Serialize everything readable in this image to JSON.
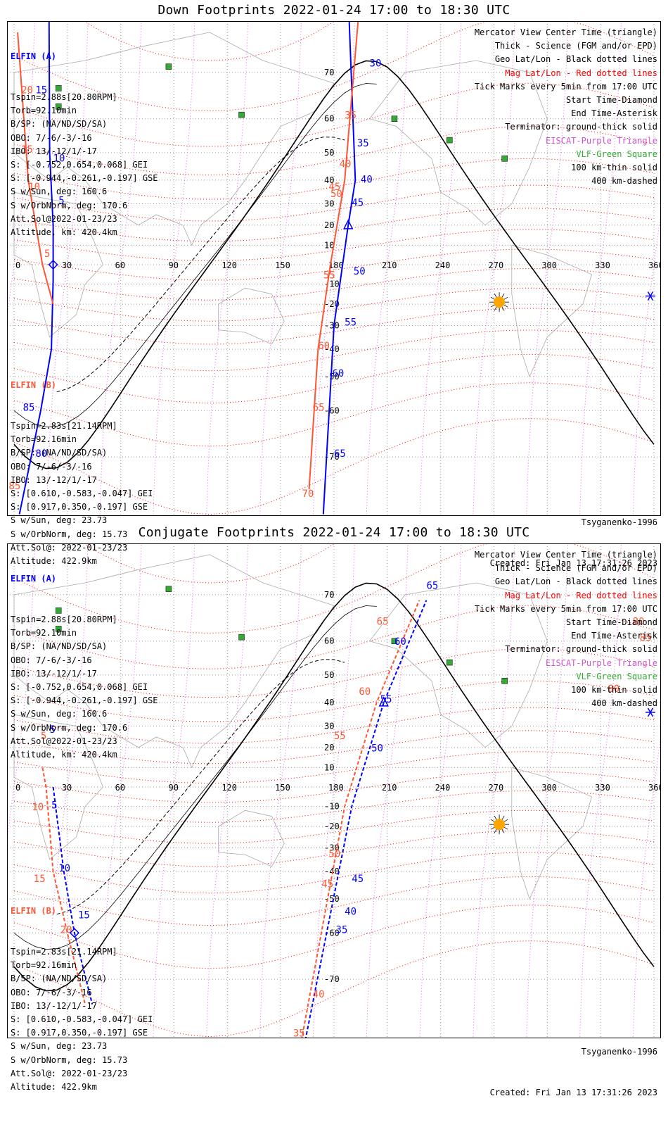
{
  "panels": [
    {
      "title": "Down Footprints 2022-01-24 17:00 to 18:30 UTC",
      "elfin_a": {
        "header": "ELFIN (A)",
        "lines": [
          "Tspin=2.88s[20.80RPM]",
          "Torb=92.10min",
          "B/SP: (NA/ND/SD/SA)",
          "OBO: 7/-6/-3/-16",
          "IBO: 13/-12/1/-17",
          "S: [-0.752,0.654,0.068] GEI",
          "S: [-0.944,-0.261,-0.197] GSE",
          "S w/Sun, deg: 160.6",
          "S w/OrbNorm, deg: 170.6",
          "Att.Sol@2022-01-23/23",
          "Altitude, km: 420.4km"
        ]
      },
      "elfin_b": {
        "header": "ELFIN (B)",
        "lines": [
          "Tspin=2.83s[21.14RPM]",
          "Torb=92.16min",
          "B/SP: (NA/ND/SD/SA)",
          "OBO: 7/-6/-3/-16",
          "IBO: 13/-12/1/-17",
          "S: [0.610,-0.583,-0.047] GEI",
          "S: [0.917,0.350,-0.197] GSE",
          "S w/Sun, deg: 23.73",
          "S w/OrbNorm, deg: 15.73",
          "Att.Sol@: 2022-01-23/23",
          "Altitude: 422.9km"
        ]
      },
      "model": "Tsyganenko-1996",
      "created": "Created: Fri Jan 13 17:31:26 2023"
    },
    {
      "title": "Conjugate Footprints 2022-01-24 17:00 to 18:30 UTC",
      "elfin_a": {
        "header": "ELFIN (A)",
        "lines": [
          "Tspin=2.88s[20.80RPM]",
          "Torb=92.10min",
          "B/SP: (NA/ND/SD/SA)",
          "OBO: 7/-6/-3/-16",
          "IBO: 13/-12/1/-17",
          "S: [-0.752,0.654,0.068] GEI",
          "S: [-0.944,-0.261,-0.197] GSE",
          "S w/Sun, deg: 160.6",
          "S w/OrbNorm, deg: 170.6",
          "Att.Sol@2022-01-23/23",
          "Altitude, km: 420.4km"
        ]
      },
      "elfin_b": {
        "header": "ELFIN (B)",
        "lines": [
          "Tspin=2.83s[21.14RPM]",
          "Torb=92.16min",
          "B/SP: (NA/ND/SD/SA)",
          "OBO: 7/-6/-3/-16",
          "IBO: 13/-12/1/-17",
          "S: [0.610,-0.583,-0.047] GEI",
          "S: [0.917,0.350,-0.197] GSE",
          "S w/Sun, deg: 23.73",
          "S w/OrbNorm, deg: 15.73",
          "Att.Sol@: 2022-01-23/23",
          "Altitude: 422.9km"
        ]
      },
      "model": "Tsyganenko-1996",
      "created": "Created: Fri Jan 13 17:31:26 2023"
    }
  ],
  "legend": [
    {
      "text": "Mercator View Center Time (triangle)",
      "color": "#000000"
    },
    {
      "text": "Thick - Science (FGM and/or EPD)",
      "color": "#000000"
    },
    {
      "text": "Geo Lat/Lon - Black dotted lines",
      "color": "#000000"
    },
    {
      "text": "Mag Lat/Lon - Red dotted lines",
      "color": "#ff0000"
    },
    {
      "text": "Tick Marks every 5min from 17:00 UTC",
      "color": "#000000"
    },
    {
      "text": "Start Time-Diamond",
      "color": "#000000"
    },
    {
      "text": "End Time-Asterisk",
      "color": "#000000"
    },
    {
      "text": "Terminator: ground-thick solid",
      "color": "#000000"
    },
    {
      "text": "EISCAT-Purple Triangle",
      "color": "#cc55cc"
    },
    {
      "text": "VLF-Green Square",
      "color": "#33aa33"
    },
    {
      "text": "100 km-thin solid",
      "color": "#000000"
    },
    {
      "text": "400 km-dashed",
      "color": "#000000"
    }
  ],
  "lon_ticks": [
    "0",
    "30",
    "60",
    "90",
    "120",
    "150",
    "180",
    "210",
    "240",
    "270",
    "300",
    "330",
    "360"
  ],
  "lat_ticks": [
    "70",
    "60",
    "50",
    "40",
    "30",
    "20",
    "10",
    "-10",
    "-20",
    "-30",
    "-40",
    "-50",
    "-60",
    "-70"
  ],
  "colors": {
    "elfin_a": "#0000ff",
    "elfin_b": "#ff5533",
    "mag_grid": "#ff0000",
    "geo_grid": "#000000",
    "eiscat": "#cc55cc",
    "vlf": "#33aa33",
    "sun": "#ffa500"
  },
  "vlf_stations": [
    {
      "lon": 87,
      "lat": 71
    },
    {
      "lon": 25,
      "lat": 67
    },
    {
      "lon": 128,
      "lat": 61
    },
    {
      "lon": 214,
      "lat": 60
    },
    {
      "lon": 245,
      "lat": 54
    },
    {
      "lon": 276,
      "lat": 48
    },
    {
      "lon": 25,
      "lat": 63
    }
  ],
  "sun": {
    "lon": 273,
    "lat": -19
  },
  "tracks": [
    {
      "a_track": [
        [
          10,
          90
        ],
        [
          20,
          50
        ],
        [
          22,
          20
        ],
        [
          22,
          5
        ],
        [
          22,
          0
        ],
        [
          22,
          -8
        ],
        [
          21,
          -40
        ],
        [
          15,
          -60
        ],
        [
          3,
          -78
        ]
      ],
      "a_labels": [
        [
          "20",
          9,
          88
        ],
        [
          "15",
          12,
          66
        ],
        [
          "10",
          22,
          47
        ],
        [
          "5",
          25,
          30
        ],
        [
          "85",
          5,
          -60
        ],
        [
          "80",
          12,
          -70
        ],
        [
          "75",
          12,
          -88
        ]
      ],
      "b_track": [
        [
          22,
          -20
        ],
        [
          16,
          0
        ],
        [
          8,
          40
        ],
        [
          2,
          76
        ]
      ],
      "b_labels": [
        [
          "25",
          3,
          80
        ],
        [
          "20",
          4,
          66
        ],
        [
          "15",
          4,
          50
        ],
        [
          "10",
          8,
          36
        ],
        [
          "5",
          17,
          4
        ],
        [
          "85",
          -3,
          -75
        ],
        [
          "80",
          -5,
          -80
        ]
      ],
      "a2_track": [
        [
          188,
          80
        ],
        [
          192,
          40
        ],
        [
          188,
          20
        ],
        [
          180,
          -30
        ],
        [
          174,
          -78
        ]
      ],
      "a2_labels": [
        [
          "30",
          200,
          71
        ],
        [
          "35",
          193,
          52
        ],
        [
          "40",
          195,
          39
        ],
        [
          "45",
          190,
          29
        ],
        [
          "50",
          191,
          -5
        ],
        [
          "55",
          186,
          -30
        ],
        [
          "60",
          179,
          -50
        ],
        [
          "65",
          180,
          -70
        ]
      ],
      "b2_track": [
        [
          196,
          82
        ],
        [
          186,
          40
        ],
        [
          178,
          0
        ],
        [
          171,
          -40
        ],
        [
          166,
          -75
        ]
      ],
      "b2_labels": [
        [
          "35",
          186,
          60
        ],
        [
          "40",
          183,
          45
        ],
        [
          "45",
          177,
          36
        ],
        [
          "50",
          178,
          33
        ],
        [
          "55",
          174,
          -7
        ],
        [
          "60",
          171,
          -40
        ],
        [
          "65",
          168,
          -60
        ],
        [
          "70",
          162,
          -76
        ]
      ]
    },
    {
      "a_track": [
        [
          22,
          0
        ],
        [
          28,
          -40
        ],
        [
          34,
          -60
        ],
        [
          44,
          -74
        ]
      ],
      "a_labels": [
        [
          "5",
          21,
          -11
        ],
        [
          "5",
          20,
          27
        ],
        [
          "10",
          25,
          -40
        ],
        [
          "15",
          36,
          -56
        ]
      ],
      "b_track": [
        [
          16,
          10
        ],
        [
          18,
          0
        ],
        [
          22,
          -40
        ],
        [
          30,
          -60
        ],
        [
          40,
          -74
        ]
      ],
      "b_labels": [
        [
          "5",
          15,
          24
        ],
        [
          "10",
          10,
          -12
        ],
        [
          "15",
          11,
          -44
        ],
        [
          "20",
          26,
          -60
        ]
      ],
      "a2_track": [
        [
          162,
          -80
        ],
        [
          190,
          -10
        ],
        [
          208,
          40
        ],
        [
          232,
          69
        ]
      ],
      "a2_labels": [
        [
          "35",
          181,
          -60
        ],
        [
          "40",
          186,
          -55
        ],
        [
          "45",
          190,
          -44
        ],
        [
          "50",
          201,
          18
        ],
        [
          "55",
          206,
          40
        ],
        [
          "60",
          214,
          59
        ],
        [
          "65",
          232,
          71
        ]
      ],
      "b2_track": [
        [
          160,
          -80
        ],
        [
          186,
          -10
        ],
        [
          204,
          40
        ],
        [
          228,
          69
        ]
      ],
      "b2_labels": [
        [
          "35",
          157,
          -78
        ],
        [
          "40",
          168,
          -73
        ],
        [
          "45",
          173,
          -46
        ],
        [
          "50",
          177,
          -34
        ],
        [
          "55",
          180,
          24
        ],
        [
          "60",
          194,
          43
        ],
        [
          "65",
          204,
          64
        ],
        [
          "80",
          348,
          64
        ],
        [
          "85",
          352,
          60
        ],
        [
          "80",
          334,
          44
        ]
      ]
    }
  ]
}
